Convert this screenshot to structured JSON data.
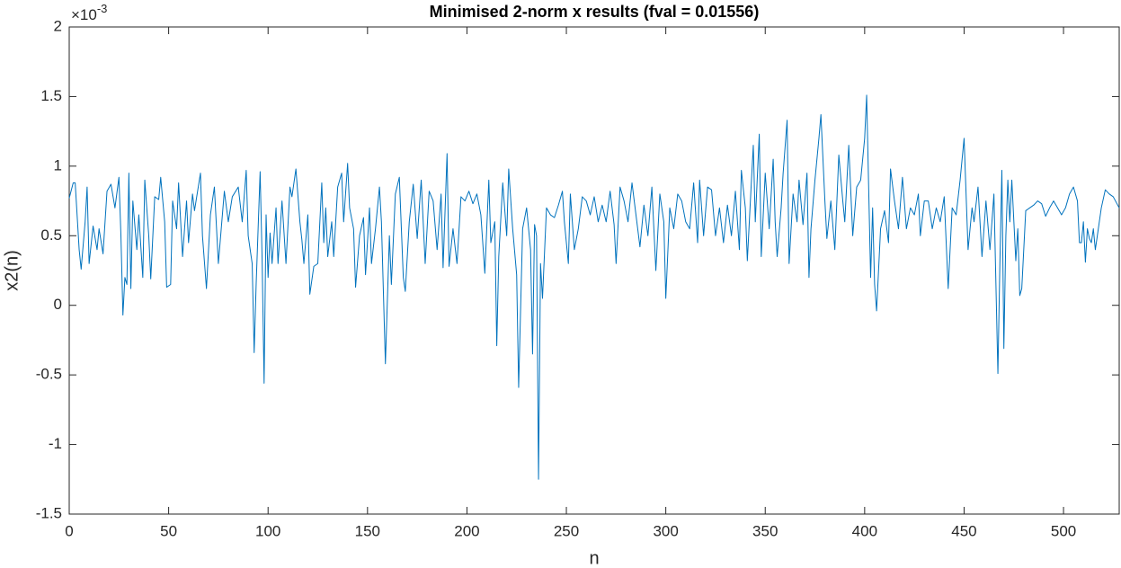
{
  "chart_data": {
    "type": "line",
    "title": "Minimised 2-norm x results (fval = 0.01556)",
    "x_label": "n",
    "y_label": "x2(n)",
    "y_exponent": {
      "base": "×10",
      "power": "-3"
    },
    "color": "#0072bd",
    "xlim": [
      0,
      528
    ],
    "ylim": [
      -1.5,
      2
    ],
    "xticks": [
      0,
      50,
      100,
      150,
      200,
      250,
      300,
      350,
      400,
      450,
      500
    ],
    "yticks": [
      -1.5,
      -1,
      -0.5,
      0,
      0.5,
      1,
      1.5,
      2
    ],
    "grid": false,
    "x": [
      0,
      2,
      3,
      5,
      6,
      8,
      9,
      10,
      12,
      14,
      15,
      17,
      19,
      21,
      23,
      25,
      26,
      27,
      28,
      29,
      30,
      31,
      32,
      34,
      35,
      37,
      38,
      40,
      41,
      43,
      45,
      46,
      48,
      49,
      51,
      52,
      54,
      55,
      57,
      59,
      60,
      62,
      63,
      66,
      67,
      69,
      71,
      73,
      75,
      78,
      80,
      82,
      85,
      87,
      89,
      90,
      92,
      93,
      94,
      96,
      97,
      98,
      99,
      100,
      101,
      102,
      104,
      105,
      107,
      109,
      111,
      112,
      114,
      116,
      117,
      118,
      120,
      121,
      123,
      125,
      127,
      128,
      129,
      130,
      132,
      133,
      135,
      137,
      138,
      140,
      141,
      143,
      144,
      146,
      148,
      149,
      151,
      152,
      154,
      156,
      157,
      159,
      161,
      162,
      164,
      166,
      168,
      169,
      171,
      173,
      175,
      177,
      179,
      181,
      183,
      185,
      187,
      188,
      190,
      191,
      193,
      195,
      197,
      199,
      201,
      203,
      205,
      207,
      209,
      211,
      212,
      214,
      215,
      216,
      218,
      220,
      221,
      223,
      225,
      226,
      228,
      230,
      232,
      233,
      234,
      235,
      236,
      237,
      238,
      240,
      242,
      244,
      246,
      248,
      249,
      251,
      252,
      254,
      256,
      258,
      260,
      262,
      264,
      266,
      268,
      270,
      272,
      274,
      275,
      277,
      279,
      281,
      283,
      285,
      287,
      289,
      291,
      293,
      295,
      297,
      299,
      300,
      302,
      304,
      306,
      308,
      310,
      312,
      314,
      316,
      317,
      319,
      321,
      323,
      325,
      327,
      329,
      331,
      333,
      335,
      337,
      338,
      340,
      341,
      343,
      344,
      345,
      347,
      348,
      350,
      352,
      354,
      355,
      356,
      358,
      359,
      361,
      362,
      364,
      366,
      367,
      369,
      371,
      372,
      373,
      375,
      377,
      378,
      380,
      381,
      383,
      385,
      387,
      389,
      390,
      392,
      394,
      396,
      398,
      400,
      401,
      403,
      404,
      405,
      406,
      408,
      410,
      412,
      413,
      415,
      417,
      419,
      421,
      423,
      425,
      427,
      428,
      430,
      432,
      434,
      436,
      438,
      440,
      442,
      444,
      446,
      448,
      450,
      452,
      454,
      455,
      457,
      459,
      461,
      463,
      465,
      467,
      468,
      469,
      470,
      471,
      472,
      473,
      474,
      476,
      477,
      478,
      479,
      481,
      483,
      485,
      487,
      489,
      491,
      493,
      495,
      497,
      499,
      501,
      503,
      505,
      507,
      508,
      509,
      510,
      511,
      512,
      513,
      514,
      515,
      516,
      517,
      519,
      521,
      523,
      525,
      528
    ],
    "values": [
      0.77,
      0.88,
      0.88,
      0.4,
      0.26,
      0.6,
      0.85,
      0.3,
      0.57,
      0.4,
      0.55,
      0.37,
      0.82,
      0.87,
      0.7,
      0.92,
      0.5,
      -0.07,
      0.2,
      0.15,
      0.95,
      0.12,
      0.75,
      0.4,
      0.65,
      0.2,
      0.9,
      0.5,
      0.19,
      0.78,
      0.76,
      0.92,
      0.6,
      0.13,
      0.15,
      0.75,
      0.55,
      0.88,
      0.35,
      0.75,
      0.45,
      0.8,
      0.68,
      0.95,
      0.5,
      0.12,
      0.65,
      0.85,
      0.3,
      0.82,
      0.6,
      0.78,
      0.85,
      0.6,
      0.97,
      0.5,
      0.3,
      -0.34,
      0.15,
      0.96,
      0.33,
      -0.56,
      0.65,
      0.2,
      0.52,
      0.3,
      0.7,
      0.3,
      0.75,
      0.3,
      0.85,
      0.78,
      0.98,
      0.6,
      0.47,
      0.3,
      0.65,
      0.08,
      0.28,
      0.3,
      0.88,
      0.45,
      0.7,
      0.35,
      0.6,
      0.35,
      0.85,
      0.95,
      0.6,
      1.02,
      0.7,
      0.55,
      0.13,
      0.5,
      0.63,
      0.22,
      0.7,
      0.3,
      0.55,
      0.85,
      0.6,
      -0.42,
      0.5,
      0.15,
      0.8,
      0.92,
      0.2,
      0.1,
      0.6,
      0.87,
      0.48,
      0.9,
      0.3,
      0.82,
      0.75,
      0.4,
      0.8,
      0.27,
      1.09,
      0.28,
      0.55,
      0.3,
      0.78,
      0.75,
      0.82,
      0.73,
      0.8,
      0.65,
      0.23,
      0.9,
      0.45,
      0.6,
      -0.29,
      0.35,
      0.88,
      0.5,
      0.98,
      0.55,
      0.22,
      -0.59,
      0.55,
      0.7,
      0.4,
      -0.35,
      0.58,
      0.5,
      -1.25,
      0.3,
      0.05,
      0.7,
      0.65,
      0.63,
      0.72,
      0.82,
      0.6,
      0.3,
      0.8,
      0.4,
      0.55,
      0.78,
      0.75,
      0.65,
      0.78,
      0.6,
      0.72,
      0.6,
      0.82,
      0.58,
      0.3,
      0.85,
      0.75,
      0.6,
      0.88,
      0.65,
      0.42,
      0.72,
      0.5,
      0.85,
      0.25,
      0.8,
      0.6,
      0.05,
      0.7,
      0.55,
      0.8,
      0.75,
      0.6,
      0.55,
      0.88,
      0.45,
      0.9,
      0.5,
      0.85,
      0.83,
      0.5,
      0.7,
      0.45,
      0.72,
      0.5,
      0.82,
      0.4,
      0.97,
      0.7,
      0.32,
      0.88,
      1.15,
      0.6,
      1.23,
      0.35,
      0.95,
      0.55,
      1.05,
      0.6,
      0.35,
      0.7,
      0.95,
      1.33,
      0.3,
      0.8,
      0.6,
      0.9,
      0.58,
      0.95,
      0.2,
      0.55,
      0.9,
      1.2,
      1.37,
      0.75,
      0.48,
      0.75,
      0.4,
      1.08,
      0.75,
      0.6,
      1.15,
      0.5,
      0.85,
      0.9,
      1.2,
      1.51,
      0.2,
      0.7,
      0.15,
      -0.04,
      0.55,
      0.68,
      0.45,
      0.98,
      0.75,
      0.55,
      0.92,
      0.55,
      0.7,
      0.65,
      0.8,
      0.5,
      0.75,
      0.75,
      0.55,
      0.7,
      0.6,
      0.78,
      0.12,
      0.7,
      0.65,
      0.9,
      1.2,
      0.4,
      0.7,
      0.6,
      0.85,
      0.35,
      0.75,
      0.4,
      0.8,
      -0.49,
      0.3,
      0.97,
      -0.31,
      0.5,
      0.9,
      0.6,
      0.9,
      0.32,
      0.55,
      0.07,
      0.12,
      0.68,
      0.7,
      0.72,
      0.75,
      0.73,
      0.64,
      0.7,
      0.75,
      0.7,
      0.65,
      0.7,
      0.8,
      0.85,
      0.75,
      0.45,
      0.45,
      0.6,
      0.31,
      0.55,
      0.48,
      0.45,
      0.55,
      0.4,
      0.5,
      0.7,
      0.83,
      0.8,
      0.78,
      0.7
    ]
  }
}
